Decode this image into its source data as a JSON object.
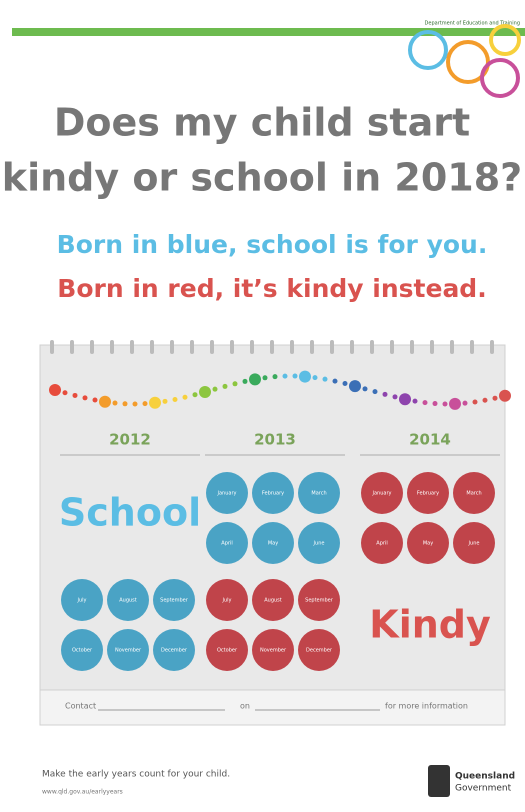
{
  "header": {
    "department": "Department of Education and Training"
  },
  "title": [
    "Does my child start",
    "kindy or school in 2018?"
  ],
  "taglines": {
    "blue": "Born in blue, school is for you.",
    "red": "Born in red, it’s kindy instead."
  },
  "calendar": {
    "columns": [
      {
        "year": "2012",
        "word": "School",
        "blue_months": [
          "July",
          "August",
          "September",
          "October",
          "November",
          "December"
        ]
      },
      {
        "year": "2013",
        "blue_months": [
          "January",
          "February",
          "March",
          "April",
          "May",
          "June"
        ],
        "red_months": [
          "July",
          "August",
          "September",
          "October",
          "November",
          "December"
        ]
      },
      {
        "year": "2014",
        "red_months": [
          "January",
          "February",
          "March",
          "April",
          "May",
          "June"
        ],
        "word": "Kindy"
      }
    ],
    "contact": {
      "prefix": "Contact",
      "middle": "on",
      "suffix": "for more information"
    }
  },
  "footer": {
    "tagline": "Make the early years count for your child.",
    "url": "www.qld.gov.au/earlyyears",
    "logo": [
      "Queensland",
      "Government"
    ]
  }
}
